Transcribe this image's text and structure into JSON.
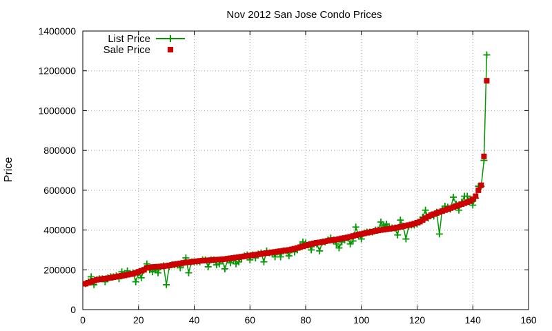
{
  "chart_data": {
    "type": "line",
    "title": "Nov 2012 San Jose Condo Prices",
    "xlabel": "",
    "ylabel": "Price",
    "xlim": [
      0,
      160
    ],
    "ylim": [
      0,
      1400000
    ],
    "x_ticks": [
      0,
      20,
      40,
      60,
      80,
      100,
      120,
      140,
      160
    ],
    "y_ticks": [
      0,
      200000,
      400000,
      600000,
      800000,
      1000000,
      1200000,
      1400000
    ],
    "grid": true,
    "legend_position": "top-left",
    "series": [
      {
        "name": "List Price",
        "kind": "line-with-plus-markers",
        "color": "#009900",
        "points": [
          [
            1,
            130000
          ],
          [
            2,
            140000
          ],
          [
            3,
            165000
          ],
          [
            4,
            125000
          ],
          [
            5,
            150000
          ],
          [
            6,
            155000
          ],
          [
            7,
            155000
          ],
          [
            8,
            140000
          ],
          [
            9,
            160000
          ],
          [
            10,
            165000
          ],
          [
            11,
            165000
          ],
          [
            12,
            170000
          ],
          [
            13,
            155000
          ],
          [
            14,
            190000
          ],
          [
            15,
            175000
          ],
          [
            16,
            195000
          ],
          [
            17,
            180000
          ],
          [
            18,
            185000
          ],
          [
            19,
            140000
          ],
          [
            20,
            185000
          ],
          [
            21,
            160000
          ],
          [
            22,
            200000
          ],
          [
            23,
            230000
          ],
          [
            24,
            200000
          ],
          [
            25,
            190000
          ],
          [
            26,
            200000
          ],
          [
            27,
            185000
          ],
          [
            28,
            215000
          ],
          [
            29,
            220000
          ],
          [
            30,
            125000
          ],
          [
            31,
            215000
          ],
          [
            32,
            225000
          ],
          [
            33,
            225000
          ],
          [
            34,
            225000
          ],
          [
            35,
            210000
          ],
          [
            36,
            230000
          ],
          [
            37,
            260000
          ],
          [
            38,
            185000
          ],
          [
            39,
            240000
          ],
          [
            40,
            240000
          ],
          [
            41,
            240000
          ],
          [
            42,
            240000
          ],
          [
            43,
            250000
          ],
          [
            44,
            250000
          ],
          [
            45,
            215000
          ],
          [
            46,
            250000
          ],
          [
            47,
            250000
          ],
          [
            48,
            225000
          ],
          [
            49,
            230000
          ],
          [
            50,
            250000
          ],
          [
            51,
            205000
          ],
          [
            52,
            250000
          ],
          [
            53,
            235000
          ],
          [
            54,
            255000
          ],
          [
            55,
            230000
          ],
          [
            56,
            240000
          ],
          [
            57,
            260000
          ],
          [
            58,
            270000
          ],
          [
            59,
            275000
          ],
          [
            60,
            250000
          ],
          [
            61,
            275000
          ],
          [
            62,
            260000
          ],
          [
            63,
            280000
          ],
          [
            64,
            285000
          ],
          [
            65,
            240000
          ],
          [
            66,
            295000
          ],
          [
            67,
            285000
          ],
          [
            68,
            285000
          ],
          [
            69,
            265000
          ],
          [
            70,
            290000
          ],
          [
            71,
            265000
          ],
          [
            72,
            295000
          ],
          [
            73,
            295000
          ],
          [
            74,
            270000
          ],
          [
            75,
            300000
          ],
          [
            76,
            290000
          ],
          [
            77,
            300000
          ],
          [
            78,
            320000
          ],
          [
            79,
            340000
          ],
          [
            80,
            335000
          ],
          [
            81,
            325000
          ],
          [
            82,
            300000
          ],
          [
            83,
            330000
          ],
          [
            84,
            330000
          ],
          [
            85,
            295000
          ],
          [
            86,
            340000
          ],
          [
            87,
            340000
          ],
          [
            88,
            350000
          ],
          [
            89,
            360000
          ],
          [
            90,
            350000
          ],
          [
            91,
            330000
          ],
          [
            92,
            310000
          ],
          [
            93,
            340000
          ],
          [
            94,
            350000
          ],
          [
            95,
            360000
          ],
          [
            96,
            330000
          ],
          [
            97,
            345000
          ],
          [
            98,
            415000
          ],
          [
            99,
            375000
          ],
          [
            100,
            355000
          ],
          [
            101,
            385000
          ],
          [
            102,
            390000
          ],
          [
            103,
            390000
          ],
          [
            104,
            390000
          ],
          [
            105,
            400000
          ],
          [
            106,
            400000
          ],
          [
            107,
            440000
          ],
          [
            108,
            420000
          ],
          [
            109,
            430000
          ],
          [
            110,
            410000
          ],
          [
            111,
            410000
          ],
          [
            112,
            410000
          ],
          [
            113,
            375000
          ],
          [
            114,
            450000
          ],
          [
            115,
            420000
          ],
          [
            116,
            355000
          ],
          [
            117,
            420000
          ],
          [
            118,
            425000
          ],
          [
            119,
            425000
          ],
          [
            120,
            430000
          ],
          [
            121,
            440000
          ],
          [
            122,
            465000
          ],
          [
            123,
            500000
          ],
          [
            124,
            460000
          ],
          [
            125,
            475000
          ],
          [
            126,
            470000
          ],
          [
            127,
            490000
          ],
          [
            128,
            380000
          ],
          [
            129,
            500000
          ],
          [
            130,
            520000
          ],
          [
            131,
            515000
          ],
          [
            132,
            505000
          ],
          [
            133,
            565000
          ],
          [
            134,
            530000
          ],
          [
            135,
            500000
          ],
          [
            136,
            540000
          ],
          [
            137,
            570000
          ],
          [
            138,
            570000
          ],
          [
            139,
            550000
          ],
          [
            140,
            525000
          ],
          [
            141,
            560000
          ],
          [
            142,
            620000
          ],
          [
            143,
            620000
          ],
          [
            144,
            750000
          ],
          [
            145,
            1280000
          ]
        ]
      },
      {
        "name": "Sale Price",
        "kind": "square-markers",
        "color": "#cc0000",
        "points": [
          [
            1,
            130000
          ],
          [
            2,
            135000
          ],
          [
            3,
            140000
          ],
          [
            4,
            145000
          ],
          [
            5,
            150000
          ],
          [
            6,
            152000
          ],
          [
            7,
            154000
          ],
          [
            8,
            156000
          ],
          [
            9,
            158000
          ],
          [
            10,
            160000
          ],
          [
            11,
            163000
          ],
          [
            12,
            165000
          ],
          [
            13,
            168000
          ],
          [
            14,
            170000
          ],
          [
            15,
            172000
          ],
          [
            16,
            175000
          ],
          [
            17,
            178000
          ],
          [
            18,
            180000
          ],
          [
            19,
            185000
          ],
          [
            20,
            190000
          ],
          [
            21,
            195000
          ],
          [
            22,
            200000
          ],
          [
            23,
            210000
          ],
          [
            24,
            212000
          ],
          [
            25,
            214000
          ],
          [
            26,
            215000
          ],
          [
            27,
            216000
          ],
          [
            28,
            217000
          ],
          [
            29,
            218000
          ],
          [
            30,
            220000
          ],
          [
            31,
            222000
          ],
          [
            32,
            225000
          ],
          [
            33,
            228000
          ],
          [
            34,
            230000
          ],
          [
            35,
            232000
          ],
          [
            36,
            235000
          ],
          [
            37,
            237000
          ],
          [
            38,
            238000
          ],
          [
            39,
            240000
          ],
          [
            40,
            242000
          ],
          [
            41,
            243000
          ],
          [
            42,
            245000
          ],
          [
            43,
            246000
          ],
          [
            44,
            247000
          ],
          [
            45,
            248000
          ],
          [
            46,
            249000
          ],
          [
            47,
            250000
          ],
          [
            48,
            251000
          ],
          [
            49,
            252000
          ],
          [
            50,
            253000
          ],
          [
            51,
            254000
          ],
          [
            52,
            256000
          ],
          [
            53,
            258000
          ],
          [
            54,
            260000
          ],
          [
            55,
            262000
          ],
          [
            56,
            264000
          ],
          [
            57,
            266000
          ],
          [
            58,
            268000
          ],
          [
            59,
            270000
          ],
          [
            60,
            272000
          ],
          [
            61,
            274000
          ],
          [
            62,
            276000
          ],
          [
            63,
            278000
          ],
          [
            64,
            280000
          ],
          [
            65,
            282000
          ],
          [
            66,
            284000
          ],
          [
            67,
            286000
          ],
          [
            68,
            288000
          ],
          [
            69,
            290000
          ],
          [
            70,
            292000
          ],
          [
            71,
            294000
          ],
          [
            72,
            296000
          ],
          [
            73,
            298000
          ],
          [
            74,
            300000
          ],
          [
            75,
            303000
          ],
          [
            76,
            306000
          ],
          [
            77,
            310000
          ],
          [
            78,
            314000
          ],
          [
            79,
            318000
          ],
          [
            80,
            322000
          ],
          [
            81,
            326000
          ],
          [
            82,
            330000
          ],
          [
            83,
            333000
          ],
          [
            84,
            336000
          ],
          [
            85,
            338000
          ],
          [
            86,
            340000
          ],
          [
            87,
            343000
          ],
          [
            88,
            346000
          ],
          [
            89,
            348000
          ],
          [
            90,
            350000
          ],
          [
            91,
            352000
          ],
          [
            92,
            355000
          ],
          [
            93,
            358000
          ],
          [
            94,
            360000
          ],
          [
            95,
            363000
          ],
          [
            96,
            366000
          ],
          [
            97,
            370000
          ],
          [
            98,
            374000
          ],
          [
            99,
            377000
          ],
          [
            100,
            380000
          ],
          [
            101,
            383000
          ],
          [
            102,
            386000
          ],
          [
            103,
            389000
          ],
          [
            104,
            392000
          ],
          [
            105,
            395000
          ],
          [
            106,
            398000
          ],
          [
            107,
            400000
          ],
          [
            108,
            402000
          ],
          [
            109,
            404000
          ],
          [
            110,
            406000
          ],
          [
            111,
            408000
          ],
          [
            112,
            410000
          ],
          [
            113,
            413000
          ],
          [
            114,
            416000
          ],
          [
            115,
            419000
          ],
          [
            116,
            422000
          ],
          [
            117,
            425000
          ],
          [
            118,
            428000
          ],
          [
            119,
            432000
          ],
          [
            120,
            437000
          ],
          [
            121,
            442000
          ],
          [
            122,
            450000
          ],
          [
            123,
            460000
          ],
          [
            124,
            468000
          ],
          [
            125,
            475000
          ],
          [
            126,
            480000
          ],
          [
            127,
            485000
          ],
          [
            128,
            490000
          ],
          [
            129,
            495000
          ],
          [
            130,
            500000
          ],
          [
            131,
            505000
          ],
          [
            132,
            510000
          ],
          [
            133,
            515000
          ],
          [
            134,
            520000
          ],
          [
            135,
            525000
          ],
          [
            136,
            530000
          ],
          [
            137,
            535000
          ],
          [
            138,
            540000
          ],
          [
            139,
            545000
          ],
          [
            140,
            555000
          ],
          [
            141,
            570000
          ],
          [
            142,
            600000
          ],
          [
            143,
            625000
          ],
          [
            144,
            770000
          ],
          [
            145,
            1150000
          ]
        ]
      }
    ]
  }
}
